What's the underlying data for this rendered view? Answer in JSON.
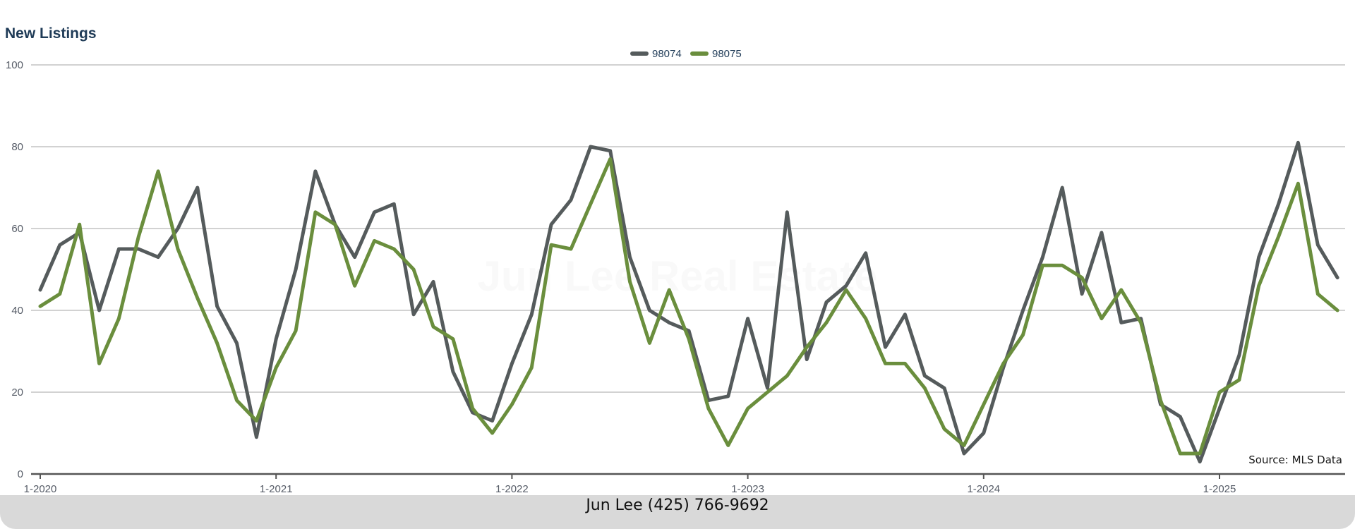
{
  "watermark": "Jun Lee Real Estate",
  "source": "Source: MLS Data",
  "footer": {
    "contact": "Jun Lee (425) 766-9692"
  },
  "colors": {
    "s98074": "#555b5c",
    "s98075": "#6a8e3d",
    "grid": "#b8b8b8",
    "axis": "#555555"
  },
  "chart_data": {
    "type": "line",
    "title": "New Listings",
    "xlabel": "",
    "ylabel": "",
    "ylim": [
      0,
      100
    ],
    "yticks": [
      0,
      20,
      40,
      60,
      80,
      100
    ],
    "grid": true,
    "legend_position": "top-center",
    "x_tick_labels": [
      "1-2020",
      "1-2021",
      "1-2022",
      "1-2023",
      "1-2024",
      "1-2025"
    ],
    "x_start": "1-2020",
    "x_end": "7-2025",
    "series": [
      {
        "name": "98074",
        "color": "#555b5c",
        "values": [
          45,
          56,
          59,
          40,
          55,
          55,
          53,
          60,
          70,
          41,
          32,
          9,
          33,
          50,
          74,
          61,
          53,
          64,
          66,
          39,
          47,
          25,
          15,
          13,
          27,
          39,
          61,
          67,
          80,
          79,
          53,
          40,
          37,
          35,
          18,
          19,
          38,
          21,
          64,
          28,
          42,
          46,
          54,
          31,
          39,
          24,
          21,
          5,
          10,
          26,
          40,
          53,
          70,
          44,
          59,
          37,
          38,
          17,
          14,
          3,
          16,
          29,
          53,
          66,
          81,
          56,
          48
        ]
      },
      {
        "name": "98075",
        "color": "#6a8e3d",
        "values": [
          41,
          44,
          61,
          27,
          38,
          58,
          74,
          55,
          43,
          32,
          18,
          13,
          26,
          35,
          64,
          61,
          46,
          57,
          55,
          50,
          36,
          33,
          16,
          10,
          17,
          26,
          56,
          55,
          66,
          77,
          47,
          32,
          45,
          33,
          16,
          7,
          16,
          20,
          24,
          31,
          37,
          45,
          38,
          27,
          27,
          21,
          11,
          7,
          17,
          27,
          34,
          51,
          51,
          48,
          38,
          45,
          37,
          18,
          5,
          5,
          20,
          23,
          46,
          58,
          71,
          44,
          40
        ]
      }
    ]
  }
}
